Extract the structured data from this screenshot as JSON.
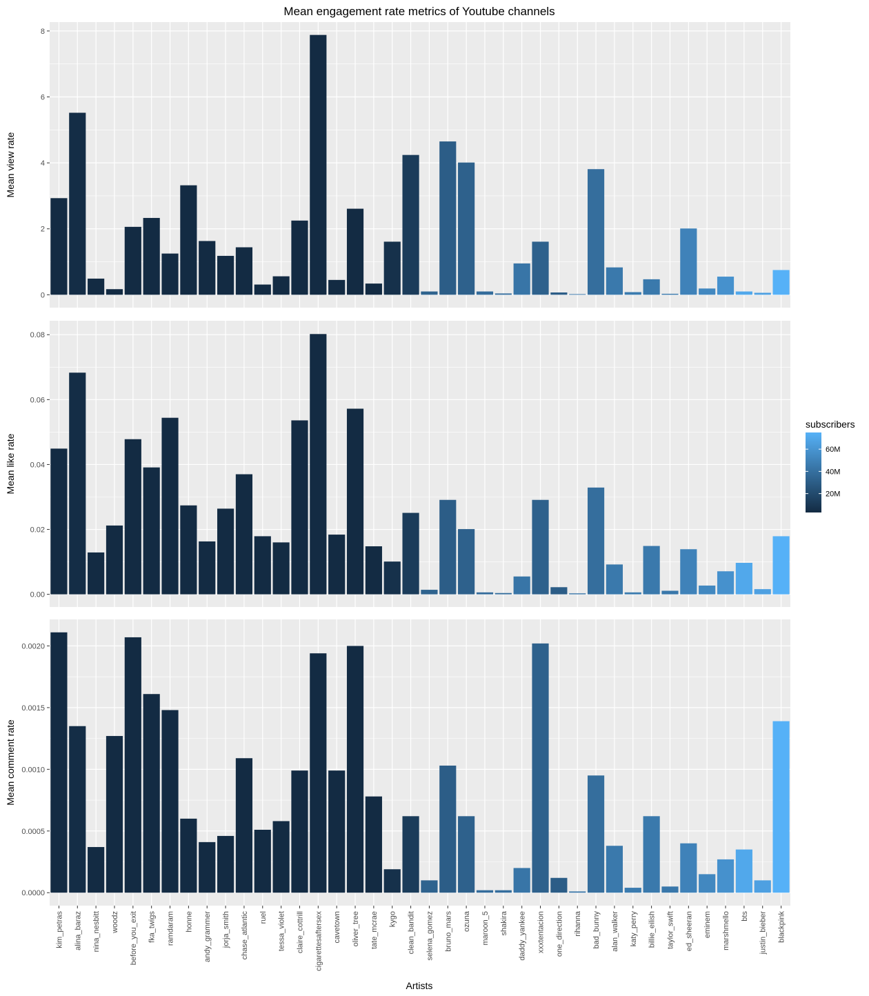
{
  "chart_data": {
    "type": "bar",
    "title": "Mean engagement rate metrics of Youtube channels",
    "xlabel": "Artists",
    "categories": [
      "kim_petras",
      "alina_baraz",
      "nina_nesbitt",
      "woodz",
      "before_you_exit",
      "fka_twigs",
      "ramdaram",
      "honne",
      "andy_grammer",
      "jorja_smith",
      "chase_atlantic",
      "ruel",
      "tessa_violet",
      "claire_cottrill",
      "cigarettesaftersex",
      "cavetown",
      "oliver_tree",
      "tate_mcrae",
      "kygo",
      "clean_bandit",
      "selena_gomez",
      "bruno_mars",
      "ozuna",
      "maroon_5",
      "shakira",
      "daddy_yankee",
      "xxxtentacion",
      "one_direction",
      "rihanna",
      "bad_bunny",
      "alan_walker",
      "katy_perry",
      "billie_eilish",
      "taylor_swift",
      "ed_sheeran",
      "eminem",
      "marshmello",
      "bts",
      "justin_bieber",
      "blackpink"
    ],
    "subscribers_millions": [
      3,
      4,
      3,
      3,
      3,
      3,
      3,
      3,
      3,
      3,
      3,
      3,
      3,
      3,
      3,
      3,
      3,
      3,
      6,
      12,
      33,
      30,
      32,
      38,
      39,
      43,
      32,
      30,
      43,
      39,
      45,
      46,
      45,
      44,
      50,
      53,
      58,
      70,
      66,
      75
    ],
    "fill_scale": {
      "name": "subscribers",
      "low_color": "#132b43",
      "high_color": "#56b1f7",
      "min": 3,
      "max": 75,
      "breaks": [
        20,
        40,
        60
      ],
      "break_labels": [
        "20M",
        "40M",
        "60M"
      ]
    },
    "panels": [
      {
        "ylabel": "Mean view rate",
        "ylim": [
          -0.39,
          8.27
        ],
        "yticks": [
          0,
          2,
          4,
          6,
          8
        ],
        "ytick_labels": [
          "0",
          "2",
          "4",
          "6",
          "8"
        ],
        "values": [
          2.93,
          5.52,
          0.49,
          0.17,
          2.06,
          2.33,
          1.25,
          3.32,
          1.63,
          1.18,
          1.44,
          0.31,
          0.56,
          2.25,
          7.88,
          0.45,
          2.61,
          0.34,
          1.61,
          4.24,
          0.1,
          4.65,
          4.01,
          0.1,
          0.04,
          0.95,
          1.61,
          0.07,
          0.02,
          3.81,
          0.83,
          0.08,
          0.47,
          0.03,
          2.01,
          0.19,
          0.55,
          0.1,
          0.06,
          0.75
        ]
      },
      {
        "ylabel": "Mean like rate",
        "ylim": [
          -0.0039,
          0.0843
        ],
        "yticks": [
          0,
          0.02,
          0.04,
          0.06,
          0.08
        ],
        "ytick_labels": [
          "0.00",
          "0.02",
          "0.04",
          "0.06",
          "0.08"
        ],
        "values": [
          0.0449,
          0.0683,
          0.0129,
          0.0212,
          0.0478,
          0.0391,
          0.0544,
          0.0274,
          0.0163,
          0.0264,
          0.037,
          0.0179,
          0.016,
          0.0536,
          0.0802,
          0.0184,
          0.0572,
          0.0148,
          0.0101,
          0.0251,
          0.0014,
          0.0291,
          0.0201,
          0.0006,
          0.0004,
          0.0055,
          0.0291,
          0.0022,
          0.0003,
          0.0329,
          0.0092,
          0.0006,
          0.0149,
          0.0011,
          0.0139,
          0.0027,
          0.0071,
          0.0097,
          0.0016,
          0.0179
        ]
      },
      {
        "ylabel": "Mean comment rate",
        "ylim": [
          -0.000105,
          0.002215
        ],
        "yticks": [
          0,
          0.0005,
          0.001,
          0.0015,
          0.002
        ],
        "ytick_labels": [
          "0.0000",
          "0.0005",
          "0.0010",
          "0.0015",
          "0.0020"
        ],
        "values": [
          0.00211,
          0.00135,
          0.00037,
          0.00127,
          0.00207,
          0.00161,
          0.00148,
          0.0006,
          0.00041,
          0.00046,
          0.00109,
          0.00051,
          0.00058,
          0.00099,
          0.00194,
          0.00099,
          0.002,
          0.00078,
          0.00019,
          0.00062,
          0.0001,
          0.00103,
          0.00062,
          2e-05,
          2e-05,
          0.0002,
          0.00202,
          0.00012,
          1e-05,
          0.00095,
          0.00038,
          4e-05,
          0.00062,
          5e-05,
          0.0004,
          0.00015,
          0.00027,
          0.00035,
          0.0001,
          0.00139
        ]
      }
    ]
  }
}
